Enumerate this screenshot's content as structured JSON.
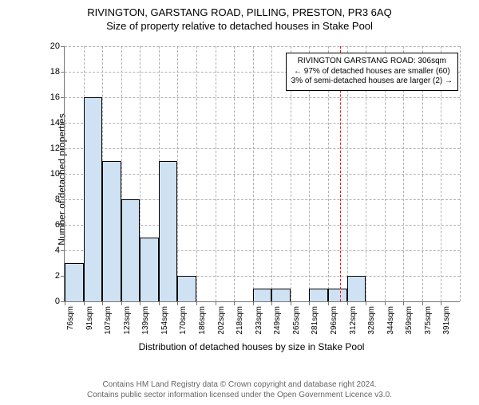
{
  "titles": {
    "line1": "RIVINGTON, GARSTANG ROAD, PILLING, PRESTON, PR3 6AQ",
    "line2": "Size of property relative to detached houses in Stake Pool"
  },
  "axes": {
    "ylabel": "Number of detached properties",
    "xlabel": "Distribution of detached houses by size in Stake Pool",
    "ylim_max": 20,
    "ytick_step": 2,
    "x_categories": [
      "76sqm",
      "91sqm",
      "107sqm",
      "123sqm",
      "139sqm",
      "154sqm",
      "170sqm",
      "186sqm",
      "202sqm",
      "218sqm",
      "233sqm",
      "249sqm",
      "265sqm",
      "281sqm",
      "296sqm",
      "312sqm",
      "328sqm",
      "344sqm",
      "359sqm",
      "375sqm",
      "391sqm"
    ]
  },
  "histogram": {
    "type": "histogram",
    "values": [
      3,
      16,
      11,
      8,
      5,
      11,
      2,
      0,
      0,
      0,
      1,
      1,
      0,
      1,
      1,
      2,
      0,
      0,
      0,
      0,
      0
    ],
    "bar_fill": "#cfe2f3",
    "bar_stroke": "#000000",
    "bar_width_ratio": 1.0,
    "grid_color": "#b0b0b0",
    "background_color": "#ffffff"
  },
  "reference": {
    "position_sqm": 306,
    "line_color": "#ff0000",
    "callout_lines": {
      "l1": "RIVINGTON GARSTANG ROAD: 306sqm",
      "l2": "← 97% of detached houses are smaller (60)",
      "l3": "3% of semi-detached houses are larger (2) →"
    }
  },
  "footer": {
    "l1": "Contains HM Land Registry data © Crown copyright and database right 2024.",
    "l2": "Contains public sector information licensed under the Open Government Licence v3.0."
  }
}
